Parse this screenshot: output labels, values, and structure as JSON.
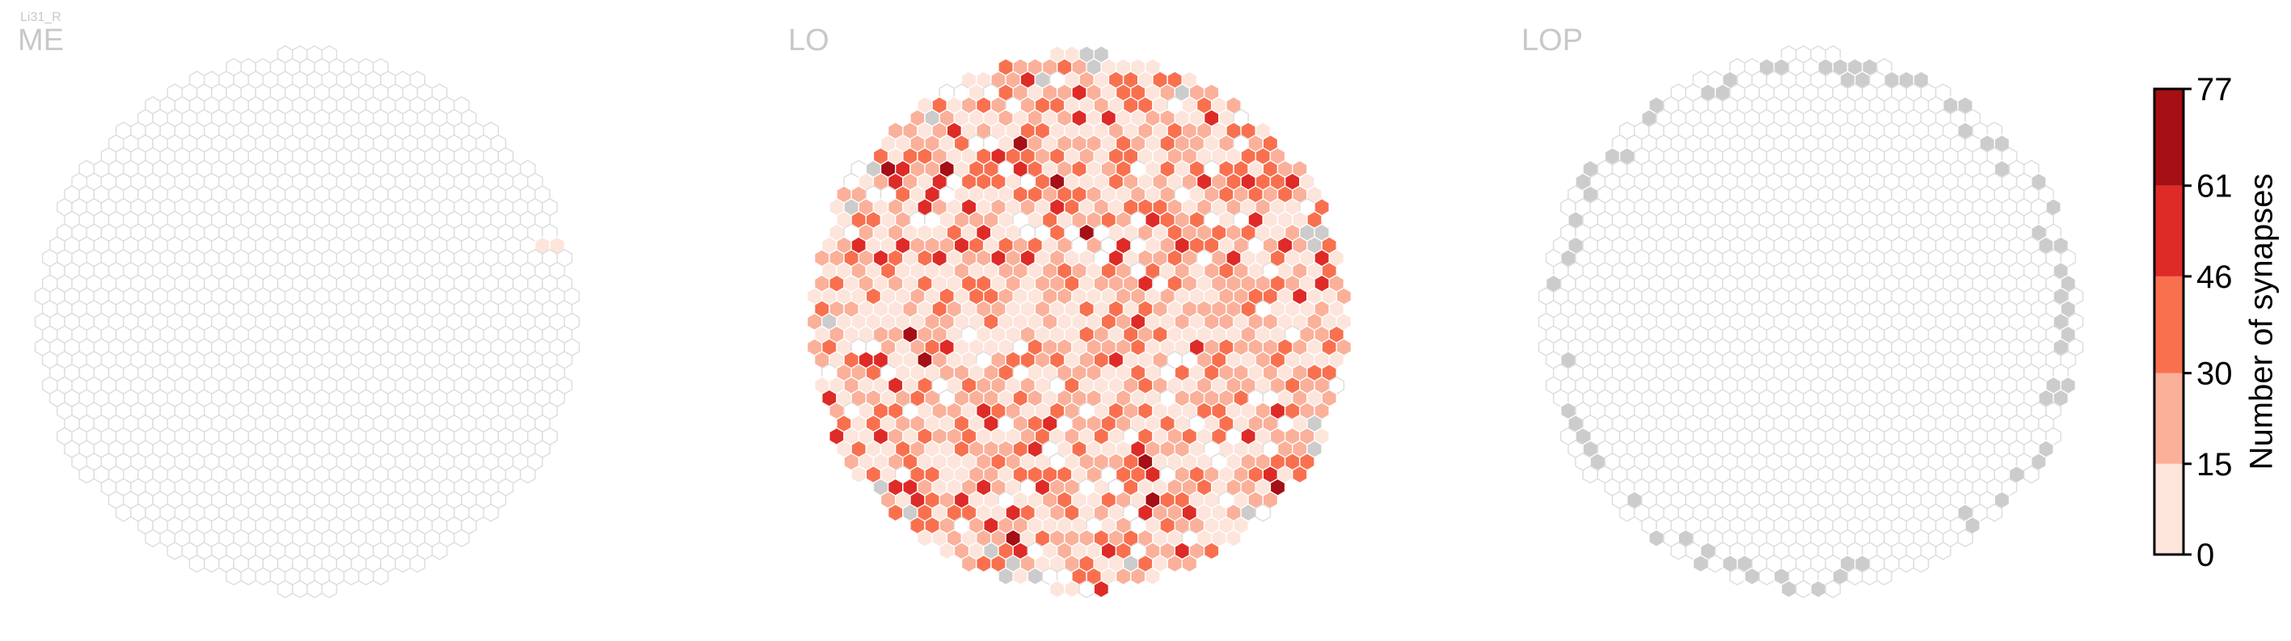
{
  "figure": {
    "cell_type_label": "Li31_R"
  },
  "chart_data": {
    "type": "heatmap",
    "shape": "hexagonal-column-map",
    "panels": [
      {
        "name": "ME",
        "regime": "empty",
        "grey_columns": 0,
        "nonzero_columns": 2
      },
      {
        "name": "LO",
        "regime": "dense",
        "grey_columns": 20,
        "nonzero_columns": 640
      },
      {
        "name": "LOP",
        "regime": "grey-rim",
        "grey_columns": 60,
        "nonzero_columns": 0
      }
    ],
    "colorbar": {
      "label": "Number of synapses",
      "ticks": [
        0,
        15,
        30,
        46,
        61,
        77
      ],
      "range": [
        0,
        77
      ],
      "bins": [
        {
          "from": 0,
          "to": 15,
          "color": "#fde5dc"
        },
        {
          "from": 15,
          "to": 30,
          "color": "#fbb09a"
        },
        {
          "from": 30,
          "to": 46,
          "color": "#f9704f"
        },
        {
          "from": 46,
          "to": 61,
          "color": "#de2b27"
        },
        {
          "from": 61,
          "to": 77,
          "color": "#a50f15"
        }
      ]
    },
    "colors": {
      "empty_cell_fill": "#ffffff",
      "empty_cell_stroke": "#dcdcdc",
      "grey_cell_fill": "#cccccc",
      "filled_cell_stroke": "#ffffff",
      "panel_label": "#c8c8c8"
    }
  }
}
